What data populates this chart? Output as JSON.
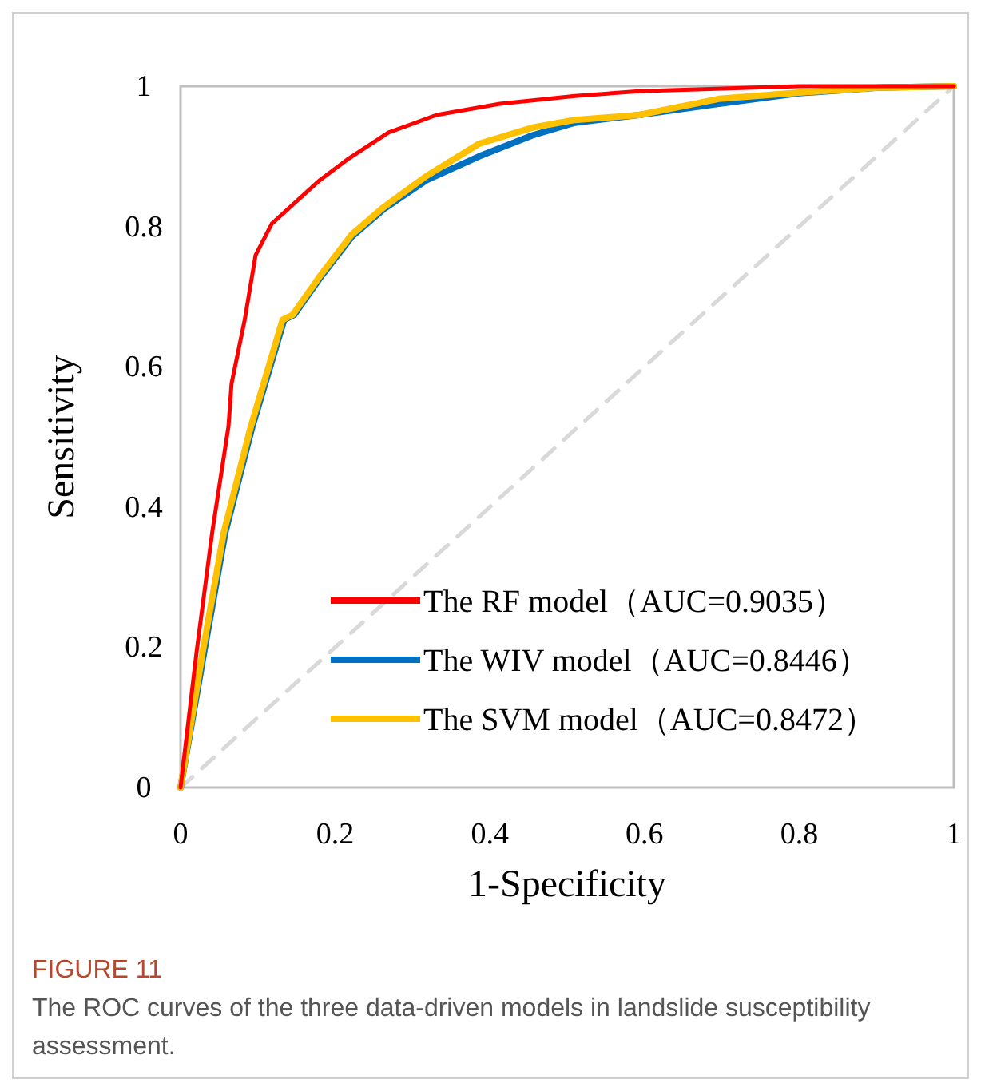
{
  "chart_data": {
    "type": "line",
    "xlabel": "1-Specificity",
    "ylabel": "Sensitivity",
    "xlim": [
      0,
      1
    ],
    "ylim": [
      0,
      1
    ],
    "xticks": [
      0,
      0.2,
      0.4,
      0.6,
      0.8,
      1
    ],
    "yticks": [
      0,
      0.2,
      0.4,
      0.6,
      0.8,
      1
    ],
    "grid": false,
    "legend": "bottom right",
    "series": [
      {
        "color": "#d9d9d9",
        "line_style": "dashed",
        "x": [
          0,
          1
        ],
        "values": [
          0,
          1
        ]
      },
      {
        "name": "The WIV model（AUC=0.8446）",
        "color": "#0070c0",
        "line_style": "solid",
        "x": [
          0,
          0.031,
          0.058,
          0.093,
          0.134,
          0.147,
          0.182,
          0.222,
          0.263,
          0.318,
          0.386,
          0.455,
          0.51,
          0.593,
          0.696,
          0.8,
          0.903,
          1
        ],
        "values": [
          0,
          0.196,
          0.364,
          0.515,
          0.667,
          0.674,
          0.729,
          0.786,
          0.825,
          0.866,
          0.9,
          0.93,
          0.948,
          0.959,
          0.975,
          0.99,
          0.998,
          1
        ]
      },
      {
        "name": "The SVM model（AUC=0.8472）",
        "color": "#ffc000",
        "line_style": "solid",
        "x": [
          0,
          0.029,
          0.056,
          0.091,
          0.132,
          0.145,
          0.18,
          0.221,
          0.262,
          0.318,
          0.386,
          0.455,
          0.51,
          0.593,
          0.696,
          0.8,
          0.903,
          1
        ],
        "values": [
          0,
          0.196,
          0.364,
          0.515,
          0.667,
          0.674,
          0.729,
          0.788,
          0.827,
          0.872,
          0.918,
          0.941,
          0.952,
          0.959,
          0.982,
          0.991,
          0.998,
          1
        ]
      },
      {
        "name": "The RF model（AUC=0.9035）",
        "color": "#ff0000",
        "line_style": "solid",
        "x": [
          0,
          0.021,
          0.041,
          0.062,
          0.066,
          0.083,
          0.097,
          0.118,
          0.18,
          0.215,
          0.269,
          0.331,
          0.413,
          0.51,
          0.593,
          0.8,
          1
        ],
        "values": [
          0,
          0.196,
          0.364,
          0.515,
          0.576,
          0.667,
          0.759,
          0.804,
          0.866,
          0.895,
          0.934,
          0.959,
          0.975,
          0.986,
          0.993,
          1,
          1
        ]
      }
    ],
    "annotations": [
      "FIGURE 11",
      "The ROC curves of the three data-driven models in landslide susceptibility assessment."
    ]
  }
}
